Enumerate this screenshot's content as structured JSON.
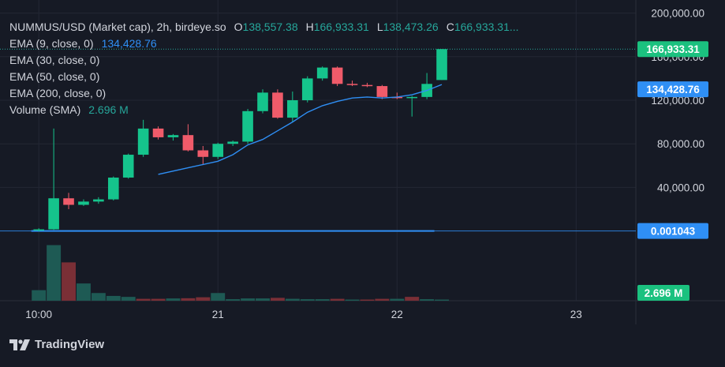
{
  "header": {
    "symbol": "NUMMUS/USD (Market cap), 2h, birdeye.so",
    "open_label": "O",
    "open": "138,557.38",
    "high_label": "H",
    "high": "166,933.31",
    "low_label": "L",
    "low": "138,473.26",
    "close_label": "C",
    "close": "166,933.31..."
  },
  "indicators": [
    {
      "label": "EMA (9, close, 0)",
      "value": "134,428.76"
    },
    {
      "label": "EMA (30, close, 0)",
      "value": ""
    },
    {
      "label": "EMA (50, close, 0)",
      "value": ""
    },
    {
      "label": "EMA (200, close, 0)",
      "value": ""
    },
    {
      "label": "Volume (SMA)",
      "value": "2.696 M"
    }
  ],
  "branding": {
    "logo_text": "TradingView"
  },
  "colors": {
    "background": "#161a25",
    "grid": "#232734",
    "up": "#26a69a",
    "down": "#ef5350",
    "up_body": "#15c48c",
    "down_body": "#f05b6a",
    "ema": "#2f8ff5",
    "vol_up": "#1e5a54",
    "vol_down": "#7a2f36",
    "badge_last": "#1bc17f",
    "badge_ema": "#2f8ff5"
  },
  "chart_data": {
    "type": "candlestick",
    "price_axis": {
      "ticks": [
        40000,
        80000,
        120000,
        160000,
        200000
      ],
      "tick_labels": [
        "40,000.00",
        "80,000.00",
        "120,000.00",
        "160,000.00",
        "200,000.00"
      ],
      "ylim": [
        -64000,
        212000
      ]
    },
    "time_axis": {
      "ticks": [
        0,
        12,
        24,
        36
      ],
      "tick_labels": [
        "10:00",
        "21",
        "22",
        "23"
      ],
      "xlim": [
        -2.6,
        40
      ]
    },
    "badges": {
      "last_price": "166,933.31",
      "ema_value": "134,428.76",
      "marker_value": "0.001043",
      "volume": "2.696 M"
    },
    "reference_line": {
      "value": 0.001043,
      "x_start": -0.5,
      "x_end": 26.5
    },
    "candles": [
      {
        "x": 0,
        "o": 500,
        "h": 2500,
        "l": -500,
        "c": 1500
      },
      {
        "x": 1,
        "o": 1500,
        "h": 94000,
        "l": 1000,
        "c": 30000
      },
      {
        "x": 2,
        "o": 30000,
        "h": 35000,
        "l": 20000,
        "c": 24000
      },
      {
        "x": 3,
        "o": 24000,
        "h": 29000,
        "l": 23000,
        "c": 27000
      },
      {
        "x": 4,
        "o": 27000,
        "h": 31000,
        "l": 25000,
        "c": 29000
      },
      {
        "x": 5,
        "o": 29000,
        "h": 50000,
        "l": 28000,
        "c": 49000
      },
      {
        "x": 6,
        "o": 49000,
        "h": 71000,
        "l": 48000,
        "c": 70000
      },
      {
        "x": 7,
        "o": 70000,
        "h": 102000,
        "l": 68000,
        "c": 94000
      },
      {
        "x": 8,
        "o": 94000,
        "h": 96000,
        "l": 84000,
        "c": 86000
      },
      {
        "x": 9,
        "o": 86000,
        "h": 89000,
        "l": 83000,
        "c": 88000
      },
      {
        "x": 10,
        "o": 88000,
        "h": 98000,
        "l": 73000,
        "c": 74000
      },
      {
        "x": 11,
        "o": 74000,
        "h": 78000,
        "l": 61000,
        "c": 68000
      },
      {
        "x": 12,
        "o": 68000,
        "h": 81000,
        "l": 66000,
        "c": 80000
      },
      {
        "x": 13,
        "o": 80000,
        "h": 83000,
        "l": 78000,
        "c": 82000
      },
      {
        "x": 14,
        "o": 82000,
        "h": 112000,
        "l": 80000,
        "c": 110000
      },
      {
        "x": 15,
        "o": 110000,
        "h": 130000,
        "l": 108000,
        "c": 127000
      },
      {
        "x": 16,
        "o": 127000,
        "h": 130000,
        "l": 103000,
        "c": 104000
      },
      {
        "x": 17,
        "o": 104000,
        "h": 128000,
        "l": 100000,
        "c": 120000
      },
      {
        "x": 18,
        "o": 120000,
        "h": 142000,
        "l": 118000,
        "c": 140000
      },
      {
        "x": 19,
        "o": 140000,
        "h": 151000,
        "l": 138000,
        "c": 150000
      },
      {
        "x": 20,
        "o": 150000,
        "h": 151000,
        "l": 133000,
        "c": 135000
      },
      {
        "x": 21,
        "o": 135000,
        "h": 138000,
        "l": 133000,
        "c": 134000
      },
      {
        "x": 22,
        "o": 134000,
        "h": 136000,
        "l": 132000,
        "c": 133000
      },
      {
        "x": 23,
        "o": 133000,
        "h": 134000,
        "l": 121000,
        "c": 123000
      },
      {
        "x": 24,
        "o": 123000,
        "h": 127000,
        "l": 121000,
        "c": 122000
      },
      {
        "x": 25,
        "o": 122000,
        "h": 124000,
        "l": 105000,
        "c": 123000
      },
      {
        "x": 26,
        "o": 123000,
        "h": 145000,
        "l": 121000,
        "c": 135000
      },
      {
        "x": 27,
        "o": 138557.38,
        "h": 166933.31,
        "l": 138473.26,
        "c": 166933.31
      }
    ],
    "ema": {
      "name": "EMA (9, close, 0)",
      "points": [
        [
          8,
          52000
        ],
        [
          10,
          58000
        ],
        [
          12,
          64000
        ],
        [
          13,
          70000
        ],
        [
          14,
          79000
        ],
        [
          15,
          84000
        ],
        [
          16,
          92000
        ],
        [
          17,
          100000
        ],
        [
          18,
          109000
        ],
        [
          19,
          115000
        ],
        [
          20,
          119000
        ],
        [
          21,
          122000
        ],
        [
          22,
          123000
        ],
        [
          23,
          122000
        ],
        [
          24,
          123000
        ],
        [
          25,
          125000
        ],
        [
          26,
          129000
        ],
        [
          27,
          134428.76
        ]
      ]
    },
    "volume": {
      "max_scale": 35,
      "bars": [
        {
          "x": 0,
          "v": 5.5,
          "dir": "up"
        },
        {
          "x": 1,
          "v": 29,
          "dir": "up"
        },
        {
          "x": 2,
          "v": 20,
          "dir": "down"
        },
        {
          "x": 3,
          "v": 9,
          "dir": "up"
        },
        {
          "x": 4,
          "v": 4,
          "dir": "up"
        },
        {
          "x": 5,
          "v": 2.5,
          "dir": "up"
        },
        {
          "x": 6,
          "v": 2,
          "dir": "up"
        },
        {
          "x": 7,
          "v": 1,
          "dir": "down"
        },
        {
          "x": 8,
          "v": 1,
          "dir": "down"
        },
        {
          "x": 9,
          "v": 1.2,
          "dir": "up"
        },
        {
          "x": 10,
          "v": 1.3,
          "dir": "down"
        },
        {
          "x": 11,
          "v": 1.8,
          "dir": "down"
        },
        {
          "x": 12,
          "v": 4,
          "dir": "up"
        },
        {
          "x": 13,
          "v": 0.8,
          "dir": "up"
        },
        {
          "x": 14,
          "v": 1.2,
          "dir": "up"
        },
        {
          "x": 15,
          "v": 1.2,
          "dir": "up"
        },
        {
          "x": 16,
          "v": 1.5,
          "dir": "down"
        },
        {
          "x": 17,
          "v": 1.0,
          "dir": "up"
        },
        {
          "x": 18,
          "v": 0.8,
          "dir": "up"
        },
        {
          "x": 19,
          "v": 0.8,
          "dir": "up"
        },
        {
          "x": 20,
          "v": 1.0,
          "dir": "down"
        },
        {
          "x": 21,
          "v": 0.6,
          "dir": "up"
        },
        {
          "x": 22,
          "v": 0.6,
          "dir": "down"
        },
        {
          "x": 23,
          "v": 1.0,
          "dir": "down"
        },
        {
          "x": 24,
          "v": 1.0,
          "dir": "up"
        },
        {
          "x": 25,
          "v": 2.0,
          "dir": "down"
        },
        {
          "x": 26,
          "v": 0.8,
          "dir": "up"
        },
        {
          "x": 27,
          "v": 0.6,
          "dir": "up"
        }
      ]
    }
  }
}
